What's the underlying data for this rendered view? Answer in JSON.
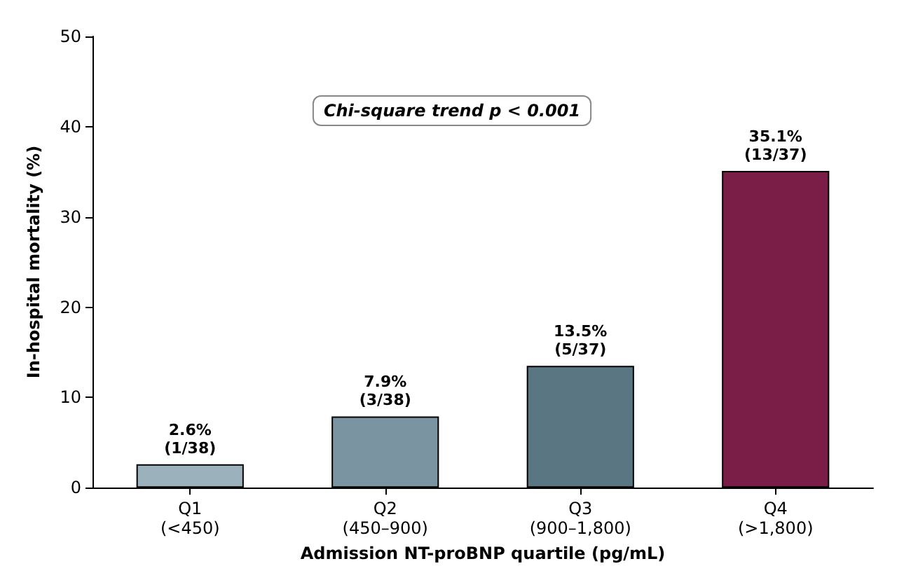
{
  "chart_data": {
    "type": "bar",
    "xlabel": "Admission NT-proBNP quartile (pg/mL)",
    "ylabel": "In-hospital mortality (%)",
    "categories": [
      "Q1\n(<450)",
      "Q2\n(450–900)",
      "Q3\n(900–1,800)",
      "Q4\n(>1,800)"
    ],
    "values": [
      2.6,
      7.9,
      13.5,
      35.1
    ],
    "colors": [
      "#9bb2bc",
      "#7a94a2",
      "#5a7682",
      "#7a1d47"
    ],
    "value_labels": [
      "2.6%\n(1/38)",
      "7.9%\n(3/38)",
      "13.5%\n(5/37)",
      "35.1%\n(13/37)"
    ],
    "ylim": [
      0,
      50
    ],
    "yticks": [
      0,
      10,
      20,
      30,
      40,
      50
    ],
    "grid": false,
    "annotations": [
      "Chi-square trend p < 0.001"
    ]
  }
}
